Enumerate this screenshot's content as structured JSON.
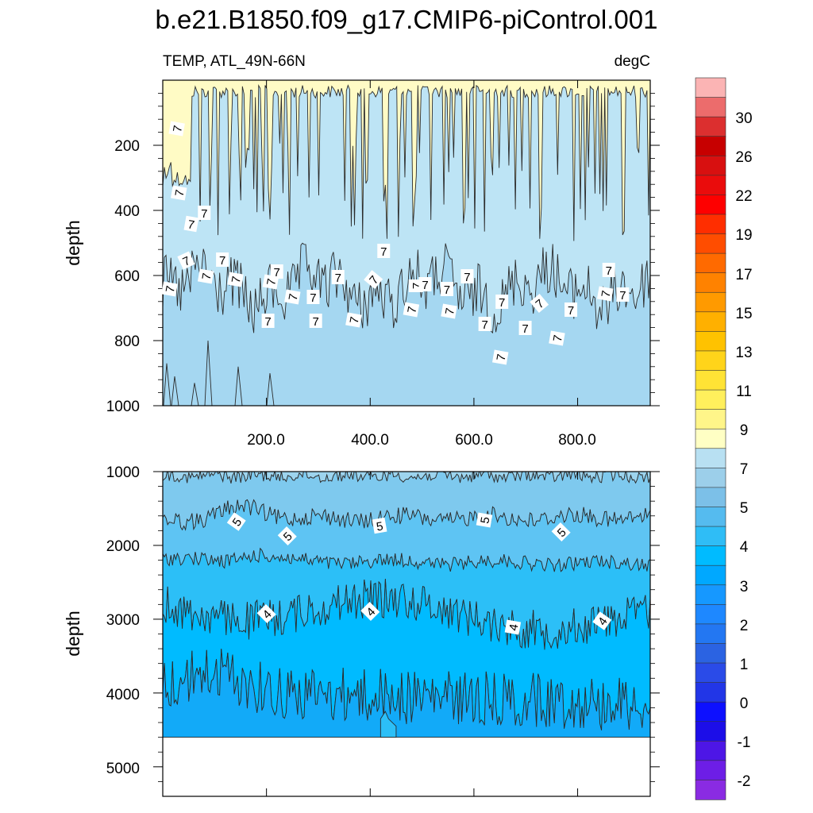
{
  "title": "b.e21.B1850.f09_g17.CMIP6-piControl.001",
  "chart_data": [
    {
      "type": "contour",
      "variable": "TEMP, ATL_49N-66N",
      "units": "degC",
      "ylabel": "depth",
      "xlim": [
        0,
        940
      ],
      "ylim": [
        1000,
        0
      ],
      "yscale": "linear",
      "x_ticks": [
        "200.0",
        "400.0",
        "600.0",
        "800.0"
      ],
      "y_ticks": [
        "200",
        "400",
        "600",
        "800",
        "1000"
      ],
      "contour_labels": [
        "7",
        "7",
        "7",
        "7",
        "7",
        "7",
        "7",
        "7",
        "7",
        "7",
        "7",
        "7",
        "7",
        "7",
        "7",
        "7",
        "7",
        "7",
        "7",
        "7",
        "7",
        "7",
        "7",
        "7",
        "7",
        "7",
        "7",
        "7",
        "7",
        "7",
        "7",
        "7"
      ],
      "fill_bands_top_to_bottom": [
        "7-9 (pale yellow) above ~100m with deep intrusions",
        "5-7 light blue",
        "5-7 deeper shade below ~750m"
      ]
    },
    {
      "type": "contour",
      "ylabel": "depth",
      "xlim": [
        0,
        940
      ],
      "ylim": [
        5400,
        1000
      ],
      "yscale": "linear",
      "y_ticks": [
        "1000",
        "2000",
        "3000",
        "4000",
        "5000"
      ],
      "contour_labels": [
        "5",
        "5",
        "5",
        "5",
        "5",
        "4",
        "4",
        "4",
        "4"
      ],
      "ocean_floor_depth": 4600
    }
  ],
  "colorbar": {
    "labels": [
      "30",
      "26",
      "22",
      "19",
      "17",
      "15",
      "13",
      "11",
      "9",
      "7",
      "5",
      "4",
      "3",
      "2",
      "1",
      "0",
      "-1",
      "-2"
    ],
    "colors": [
      "#fbb4b4",
      "#ec6c6c",
      "#dc2f2f",
      "#c70000",
      "#d81010",
      "#ea0c0c",
      "#fe0000",
      "#ff2e00",
      "#ff4d00",
      "#ff6a00",
      "#ff8200",
      "#ff9a00",
      "#ffb000",
      "#ffc200",
      "#ffd41a",
      "#ffe335",
      "#ffef5c",
      "#fff589",
      "#ffffc4",
      "#b8e0f2",
      "#9ccfea",
      "#7cc0e8",
      "#55bbef",
      "#2fbdf6",
      "#00bbff",
      "#00a8ff",
      "#1698ff",
      "#1e88ff",
      "#2377f2",
      "#2b63e2",
      "#2a4be8",
      "#2236e7",
      "#0d10ff",
      "#1c0ee8",
      "#4d16e6",
      "#6d1ee6",
      "#8a2be2"
    ]
  }
}
